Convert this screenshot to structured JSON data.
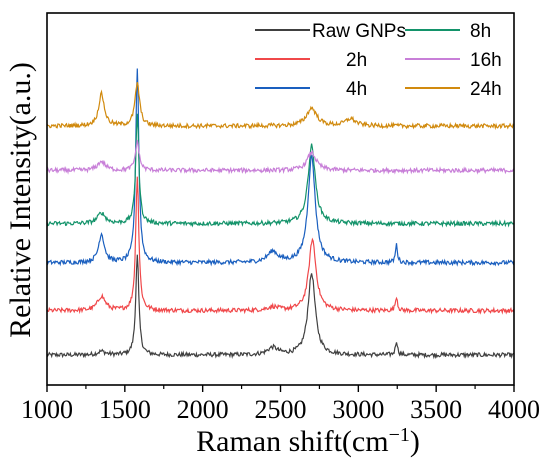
{
  "chart_data": {
    "type": "line",
    "xlabel": "Raman shift(cm",
    "xlabel_sup": "−1",
    "xlabel_close": ")",
    "ylabel": "Relative Intensity(a.u.)",
    "xlim": [
      1000,
      4000
    ],
    "xticks": [
      "1000",
      "1500",
      "2000",
      "2500",
      "3000",
      "3500",
      "4000"
    ],
    "y_tick_labels_shown": false,
    "legend_position": "top-right",
    "noise_level": 0.012,
    "series": [
      {
        "name": "Raw GNPs",
        "color": "#404040",
        "baseline": 0.0,
        "peaks": [
          [
            1350,
            0.01,
            30
          ],
          [
            1580,
            0.28,
            12
          ],
          [
            2450,
            0.02,
            40
          ],
          [
            2700,
            0.23,
            28
          ],
          [
            3245,
            0.04,
            8
          ]
        ]
      },
      {
        "name": "2h",
        "color": "#f0484a",
        "baseline": 0.125,
        "peaks": [
          [
            1350,
            0.04,
            30
          ],
          [
            1580,
            0.38,
            12
          ],
          [
            2450,
            0.01,
            40
          ],
          [
            2705,
            0.2,
            28
          ],
          [
            3245,
            0.04,
            8
          ]
        ]
      },
      {
        "name": "4h",
        "color": "#1a5fbf",
        "baseline": 0.26,
        "peaks": [
          [
            1350,
            0.08,
            22
          ],
          [
            1580,
            0.55,
            12
          ],
          [
            2450,
            0.03,
            40
          ],
          [
            2700,
            0.3,
            28
          ],
          [
            3245,
            0.05,
            8
          ]
        ]
      },
      {
        "name": "8h",
        "color": "#13936a",
        "baseline": 0.37,
        "peaks": [
          [
            1350,
            0.03,
            30
          ],
          [
            1580,
            0.31,
            12
          ],
          [
            2700,
            0.22,
            28
          ]
        ]
      },
      {
        "name": "16h",
        "color": "#c87fd8",
        "baseline": 0.52,
        "peaks": [
          [
            1350,
            0.025,
            30
          ],
          [
            1580,
            0.08,
            15
          ],
          [
            2700,
            0.05,
            35
          ]
        ]
      },
      {
        "name": "24h",
        "color": "#d18a0e",
        "baseline": 0.645,
        "peaks": [
          [
            1350,
            0.09,
            22
          ],
          [
            1580,
            0.12,
            18
          ],
          [
            2700,
            0.05,
            40
          ],
          [
            2950,
            0.02,
            40
          ]
        ]
      }
    ]
  }
}
